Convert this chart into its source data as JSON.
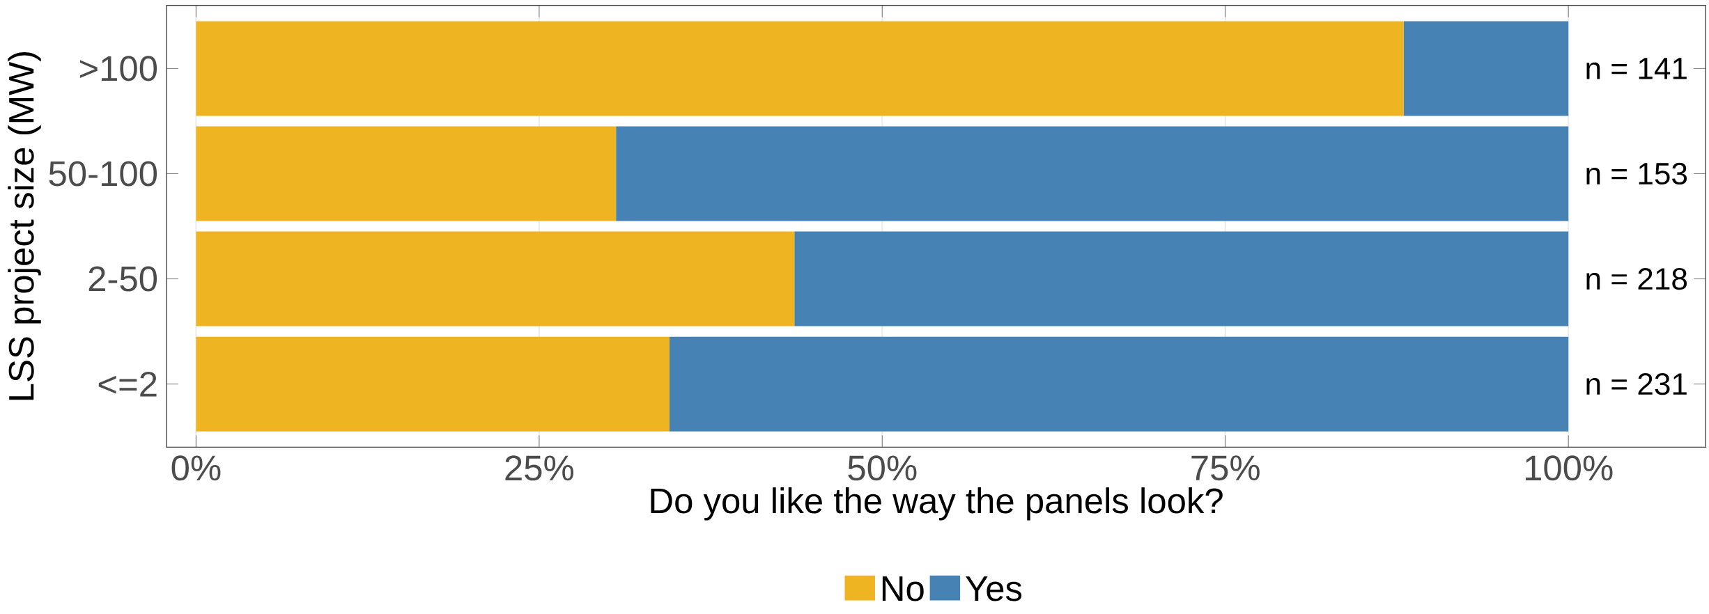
{
  "chart_data": {
    "type": "bar",
    "orientation": "horizontal",
    "stacked": true,
    "xlabel": "Do you like the way the panels look?",
    "ylabel": "LSS project size (MW)",
    "categories": [
      ">100",
      "50-100",
      "2-50",
      "<=2"
    ],
    "series": [
      {
        "name": "No",
        "color": "#eeb422",
        "values": [
          88.0,
          30.6,
          43.6,
          34.5
        ]
      },
      {
        "name": "Yes",
        "color": "#4682b4",
        "values": [
          12.0,
          69.4,
          56.4,
          65.5
        ]
      }
    ],
    "xlim": [
      -2.15,
      110
    ],
    "xticks": [
      {
        "value": 0,
        "label": "0%"
      },
      {
        "value": 25,
        "label": "25%"
      },
      {
        "value": 50,
        "label": "50%"
      },
      {
        "value": 75,
        "label": "75%"
      },
      {
        "value": 100,
        "label": "100%"
      }
    ],
    "grid": "x",
    "legend": "bottom",
    "annotations": [
      "n = 141",
      "n = 153",
      "n = 218",
      "n = 231"
    ]
  }
}
